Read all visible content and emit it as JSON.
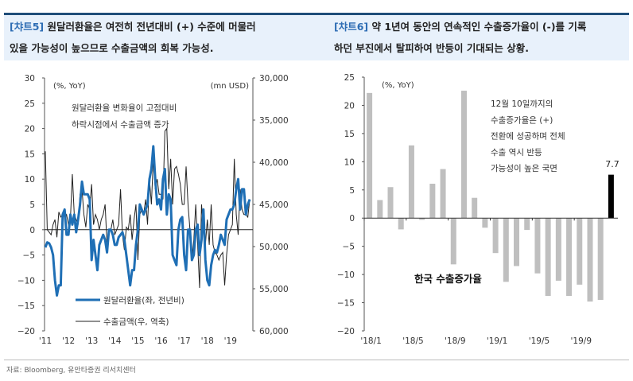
{
  "header": {
    "left": {
      "tag": "[챠트5]",
      "line1": " 원달러환율은 여전히 전년대비 (+) 수준에 머물러",
      "line2": "있을 가능성이 높으므로 수출금액의 회복 가능성."
    },
    "right": {
      "tag": "[챠트6]",
      "line1": " 약 1년여 동안의 연속적인 수출증가율이 (-)를 기록",
      "line2": "하던 부진에서 탈피하여 반등이 기대되는 상황."
    }
  },
  "source": "자료: Bloomberg, 유안타증권 리서치센터",
  "colors": {
    "accent": "#2e6db4",
    "header_bg": "#e8f1fb",
    "krw_line": "#1f6fb5",
    "export_line": "#222222",
    "bar": "#bfbfbf",
    "bar_highlight": "#000000"
  },
  "chart_data": [
    {
      "type": "line",
      "left_unit": "(%, YoY)",
      "right_unit": "(mn USD)",
      "annotation": [
        "원달러환율 변화율이 고점대비",
        "하락시점에서 수출금액 증가"
      ],
      "x_ticks": [
        "'11",
        "'12",
        "'13",
        "'14",
        "'15",
        "'16",
        "'17",
        "'18",
        "'19"
      ],
      "y_left": {
        "range": [
          -20,
          30
        ],
        "ticks": [
          "30",
          "25",
          "20",
          "15",
          "10",
          "5",
          "0",
          "-5",
          "-10",
          "-15",
          "-20"
        ]
      },
      "y_right": {
        "range": [
          30000,
          60000
        ],
        "inverted": true,
        "ticks": [
          "30,000",
          "35,000",
          "40,000",
          "45,000",
          "50,000",
          "55,000",
          "60,000"
        ]
      },
      "x_start": "2011-01",
      "frequency": "monthly",
      "series": [
        {
          "name": "원달러환율(좌, 전년비)",
          "axis": "left",
          "values": [
            -3.5,
            -2.5,
            -2.7,
            -3.5,
            -5,
            -10,
            -13,
            -11,
            -11,
            3,
            4,
            -1,
            -1,
            3,
            1,
            3,
            -0.5,
            2,
            5,
            9.5,
            7,
            7,
            7,
            6,
            -6,
            -2,
            -5,
            -8,
            -3,
            -2,
            -1,
            -2,
            -4.5,
            0,
            0,
            -1,
            -3,
            -3,
            -1.5,
            -1,
            -0.5,
            -2,
            -5,
            -8,
            -11,
            -8,
            -8,
            -3,
            0,
            5,
            4,
            3,
            4,
            5,
            10,
            12,
            16.5,
            10,
            5,
            6,
            4,
            10,
            12,
            3,
            7,
            6,
            -5,
            -6,
            -7,
            0,
            2,
            2.5,
            -5,
            -8,
            0,
            0,
            -6,
            -5,
            0,
            1,
            -5,
            -2,
            4,
            -6,
            -10,
            -11,
            -7,
            -5,
            -4,
            -4.5,
            -3,
            -1,
            -2,
            -3,
            2,
            3,
            4,
            4,
            5,
            8,
            10,
            4,
            8,
            8,
            3,
            5,
            6
          ]
        },
        {
          "name": "수출금액(우, 역축)",
          "axis": "right",
          "values": [
            38700,
            48000,
            48300,
            48600,
            47400,
            46800,
            48900,
            45900,
            46500,
            46200,
            46500,
            46200,
            47400,
            46800,
            41400,
            46200,
            46800,
            47400,
            43800,
            43200,
            46200,
            47700,
            45000,
            45600,
            42600,
            47400,
            46200,
            46800,
            48000,
            46800,
            46200,
            45000,
            49800,
            48000,
            48000,
            46800,
            48600,
            48000,
            47400,
            43200,
            48600,
            50400,
            47700,
            48000,
            46200,
            49200,
            46800,
            45000,
            51600,
            46200,
            45600,
            46200,
            44400,
            47400,
            42000,
            45000,
            39600,
            43200,
            42000,
            43800,
            43800,
            44400,
            36300,
            36000,
            43200,
            39600,
            45000,
            40800,
            40500,
            41400,
            42600,
            45000,
            45000,
            40500,
            45000,
            48000,
            51600,
            49200,
            45000,
            49800,
            54900,
            45000,
            48000,
            49800,
            46800,
            49800,
            45000,
            49800,
            50700,
            51000,
            51600,
            51000,
            50700,
            54600,
            51000,
            48600,
            48000,
            47400,
            39600,
            46200,
            48600,
            43200,
            45600,
            46200,
            46200,
            46500,
            44400
          ]
        }
      ],
      "legend": "bottom-left",
      "grid": false
    },
    {
      "type": "bar",
      "unit": "(%, YoY)",
      "title_label": "한국 수출증가율",
      "annotation": [
        "12월 10일까지의",
        "수출증가율은 (+)",
        "전환에 성공하며 전체",
        "수출 역시 반등",
        "가능성이 높은 국면"
      ],
      "highlight_label": "7.7",
      "categories": [
        "18/1",
        "18/2",
        "18/3",
        "18/4",
        "18/5",
        "18/6",
        "18/7",
        "18/8",
        "18/9",
        "18/10",
        "18/11",
        "18/12",
        "19/1",
        "19/2",
        "19/3",
        "19/4",
        "19/5",
        "19/6",
        "19/7",
        "19/8",
        "19/9",
        "19/10",
        "19/11",
        "19/12"
      ],
      "x_ticks": [
        "'18/1",
        "'18/5",
        "'18/9",
        "'19/1",
        "'19/5",
        "'19/9"
      ],
      "values": [
        22.2,
        3.2,
        5.5,
        -2.0,
        12.9,
        -0.3,
        6.1,
        8.7,
        -8.2,
        22.6,
        3.6,
        -1.7,
        -6.2,
        -11.3,
        -8.5,
        -2.1,
        -9.8,
        -13.8,
        -11.1,
        -13.8,
        -11.8,
        -14.8,
        -14.5,
        7.7
      ],
      "highlight_index": 23,
      "ylim": [
        -20,
        25
      ],
      "y_ticks": [
        "25",
        "20",
        "15",
        "10",
        "5",
        "0",
        "-5",
        "-10",
        "-15",
        "-20"
      ],
      "grid": false
    }
  ]
}
